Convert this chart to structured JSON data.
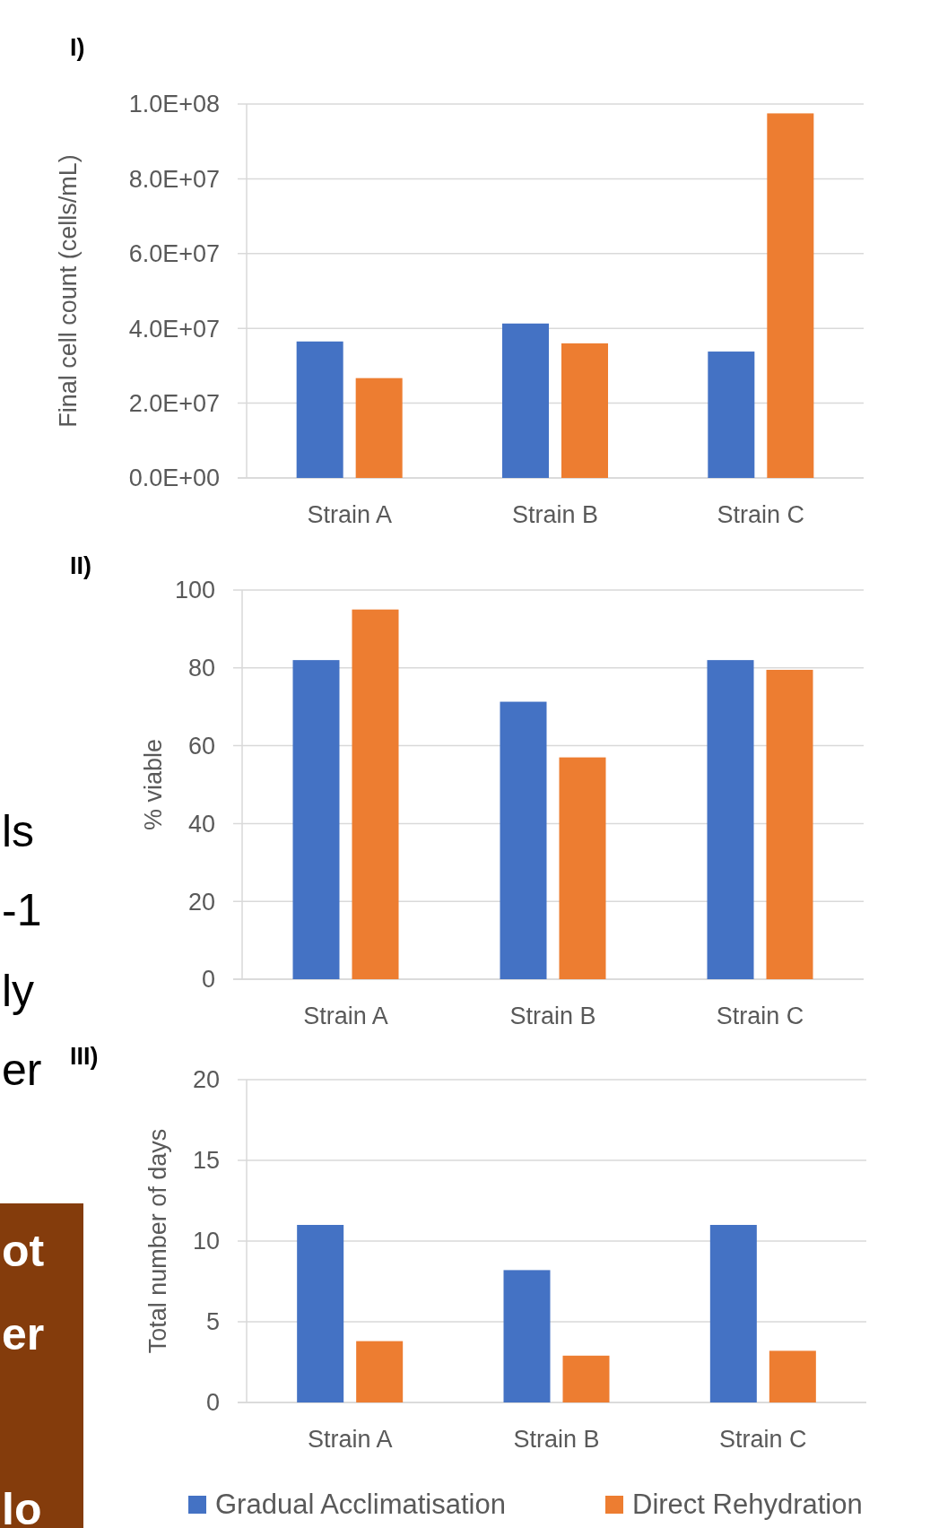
{
  "chart_data": [
    {
      "type": "bar",
      "title": "I)",
      "ylabel": "Final cell count (cells/mL)",
      "categories": [
        "Strain A",
        "Strain B",
        "Strain C"
      ],
      "series": [
        {
          "color": "#4472c4",
          "values": [
            36500000,
            41300000,
            33800000
          ]
        },
        {
          "color": "#ed7d31",
          "values": [
            26700000,
            36000000,
            97500000
          ]
        }
      ],
      "ylim": [
        0,
        100000000
      ],
      "yticks": [
        {
          "value": 0,
          "label": "0.0E+00"
        },
        {
          "value": 20000000,
          "label": "2.0E+07"
        },
        {
          "value": 40000000,
          "label": "4.0E+07"
        },
        {
          "value": 60000000,
          "label": "6.0E+07"
        },
        {
          "value": 80000000,
          "label": "8.0E+07"
        },
        {
          "value": 100000000,
          "label": "1.0E+08"
        }
      ],
      "grid": "y",
      "legend": false
    },
    {
      "type": "bar",
      "title": "II)",
      "ylabel": "% viable",
      "categories": [
        "Strain A",
        "Strain B",
        "Strain C"
      ],
      "series": [
        {
          "color": "#4472c4",
          "values": [
            82,
            71.3,
            82
          ]
        },
        {
          "color": "#ed7d31",
          "values": [
            95,
            57,
            79.5
          ]
        }
      ],
      "ylim": [
        0,
        100
      ],
      "yticks": [
        0,
        20,
        40,
        60,
        80,
        100
      ],
      "grid": "y",
      "legend": false
    },
    {
      "type": "bar",
      "title": "III)",
      "ylabel": "Total number of days",
      "categories": [
        "Strain A",
        "Strain B",
        "Strain C"
      ],
      "series": [
        {
          "name": "Gradual Acclimatisation",
          "color": "#4472c4",
          "values": [
            11,
            8.2,
            11
          ]
        },
        {
          "name": "Direct Rehydration",
          "color": "#ed7d31",
          "values": [
            3.8,
            2.9,
            3.2
          ]
        }
      ],
      "ylim": [
        0,
        20
      ],
      "yticks": [
        0,
        5,
        10,
        15,
        20
      ],
      "grid": "y",
      "legend": "bottom"
    },
    {
      "type": "other",
      "annotations": [
        "ls",
        "-1",
        "ly",
        "er"
      ]
    },
    {
      "type": "other",
      "color": "#843c0c",
      "annotations": [
        "ot",
        "er",
        "lo"
      ]
    }
  ]
}
